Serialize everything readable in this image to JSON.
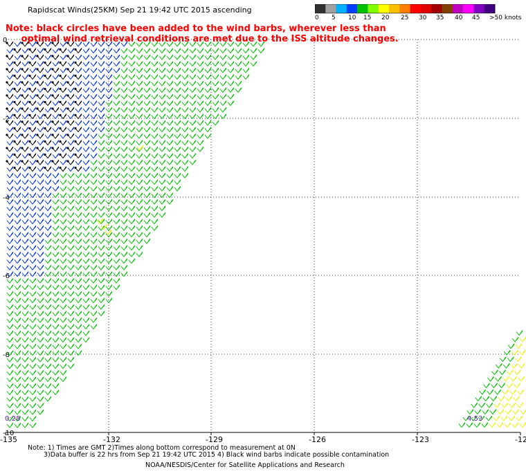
{
  "header": {
    "title": "Rapidscat Winds(25KM)  Sep 21 19:42 UTC 2015 ascending"
  },
  "legend": {
    "unit_label": ">50 knots",
    "tick_labels": [
      "0",
      "5",
      "10",
      "15",
      "20",
      "25",
      "30",
      "35",
      "40",
      "45"
    ],
    "colors": [
      "#303030",
      "#a0a0a0",
      "#00b0ff",
      "#0040ff",
      "#00c000",
      "#80ff00",
      "#ffff00",
      "#ffc000",
      "#ff8000",
      "#ff0000",
      "#e00000",
      "#a00000",
      "#804000",
      "#c000c0",
      "#ff00ff",
      "#8000c0",
      "#400080"
    ]
  },
  "note": {
    "line1": "Note: black circles have been added to the wind barbs, wherever less than",
    "line2": "     optimal wind retrieval conditions are met due to the ISS altitude changes."
  },
  "map": {
    "lon_labels": [
      "-135",
      "-132",
      "-129",
      "-126",
      "-123",
      "-12"
    ],
    "lat_labels": [
      "0",
      "-2",
      "-4",
      "-6",
      "-8",
      "-10"
    ],
    "time_labels": [
      "0:28",
      "4:53"
    ],
    "colors": {
      "green": "#00c000",
      "blue": "#0030e0",
      "yellow": "#f0f000",
      "contaminated": "#000000"
    }
  },
  "footer": {
    "line1": "Note: 1) Times are GMT 2)Times along bottom correspond to measurement at 0N",
    "line2": "3)Data buffer is 22 hrs from Sep 21 19:42 UTC 2015 4) Black wind barbs indicate possible contamination",
    "line3": "NOAA/NESDIS/Center for Satellite Applications and Research"
  }
}
